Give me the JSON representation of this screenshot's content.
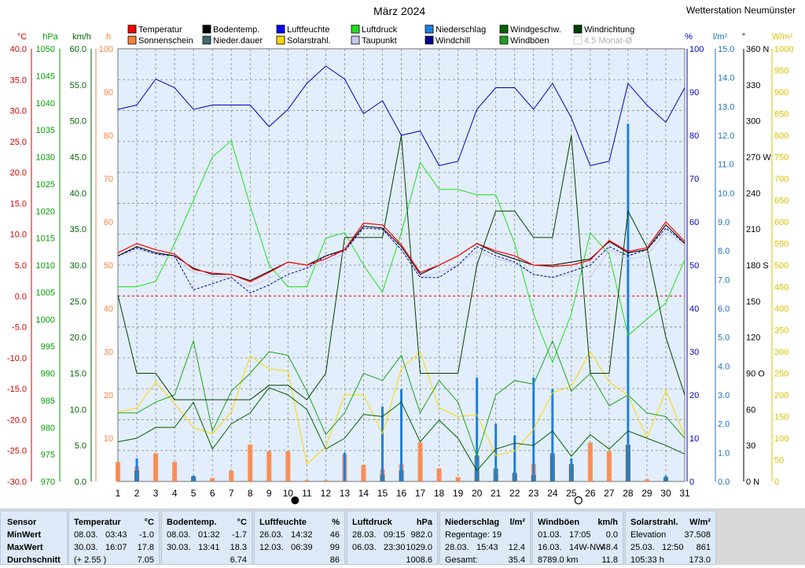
{
  "title": "März 2024",
  "station": "Wetterstation Neumünster",
  "chart_data": {
    "type": "line",
    "x_label_start_day": 1,
    "x_tick_labels": [
      "1",
      "2",
      "3",
      "4",
      "5",
      "6",
      "7",
      "8",
      "9",
      "10",
      "11",
      "12",
      "13",
      "14",
      "15",
      "16",
      "17",
      "18",
      "19",
      "20",
      "21",
      "22",
      "23",
      "24",
      "25",
      "26",
      "27",
      "28",
      "29",
      "30",
      "31"
    ],
    "moon_new_day": 10,
    "moon_full_day": 25,
    "axes": {
      "temp_c": {
        "unit": "°C",
        "color": "#d40000",
        "range": [
          -30,
          40
        ],
        "ticks": [
          "40.0",
          "35.0",
          "30.0",
          "25.0",
          "20.0",
          "15.0",
          "10.0",
          "5.0",
          "0.0",
          "-5.0",
          "-10.0",
          "-15.0",
          "-20.0",
          "-25.0",
          "-30.0"
        ]
      },
      "pressure_hpa": {
        "unit": "hPa",
        "color": "#00a000",
        "range": [
          970,
          1050
        ],
        "ticks": [
          "1050",
          "1045",
          "1040",
          "1035",
          "1030",
          "1025",
          "1020",
          "1015",
          "1010",
          "1005",
          "1000",
          "995",
          "990",
          "985",
          "980",
          "975",
          "970"
        ]
      },
      "wind_kmh": {
        "unit": "km/h",
        "color": "#006000",
        "range": [
          0,
          60
        ],
        "ticks": [
          "60.0",
          "55.0",
          "50.0",
          "45.0",
          "40.0",
          "35.0",
          "30.0",
          "25.0",
          "20.0",
          "15.0",
          "10.0",
          "5.0",
          "0.0"
        ]
      },
      "sun_h": {
        "unit": "h",
        "color": "#ff7f3a",
        "range": [
          0,
          100
        ],
        "ticks": [
          "100",
          "90",
          "80",
          "70",
          "60",
          "50",
          "40",
          "30",
          "20",
          "10"
        ]
      },
      "humidity_pct": {
        "unit": "%",
        "color": "#0000c0",
        "range": [
          0,
          100
        ],
        "ticks": [
          "100",
          "90",
          "80",
          "70",
          "60",
          "50",
          "40",
          "30",
          "20",
          "10",
          "0"
        ]
      },
      "rain_lm2": {
        "unit": "l/m²",
        "color": "#1f6fbf",
        "range": [
          0,
          15
        ],
        "ticks": [
          "15.0",
          "14.0",
          "13.0",
          "12.0",
          "11.0",
          "10.0",
          "9.0",
          "8.0",
          "7.0",
          "6.0",
          "5.0",
          "4.0",
          "3.0",
          "2.0",
          "1.0",
          "0.0"
        ]
      },
      "wind_dir_deg": {
        "unit": "°",
        "color": "#000000",
        "range": [
          0,
          360
        ],
        "ticks": [
          "360 N",
          "330",
          "300",
          "270 W",
          "240",
          "210",
          "180 S",
          "150",
          "120",
          "90  O",
          "60",
          "30",
          "0  N"
        ]
      },
      "solar_wm2": {
        "unit": "W/m²",
        "color": "#d8c000",
        "range": [
          0,
          1000
        ],
        "ticks": [
          "1000",
          "950",
          "900",
          "850",
          "800",
          "750",
          "700",
          "650",
          "600",
          "550",
          "500",
          "450",
          "400",
          "350",
          "300",
          "250",
          "200",
          "150",
          "100",
          "50",
          "0"
        ]
      }
    },
    "legend": [
      {
        "label": "Temperatur",
        "color": "#ff0000"
      },
      {
        "label": "Sonnenschein",
        "color": "#ff7f3a"
      },
      {
        "label": "Bodentemp.",
        "color": "#000000"
      },
      {
        "label": "Nieder.dauer",
        "color": "#3c6e6e"
      },
      {
        "label": "Luftfeuchte",
        "color": "#0000ff"
      },
      {
        "label": "Solarstrahl.",
        "color": "#ffd800"
      },
      {
        "label": "Luftdruck",
        "color": "#22dd22"
      },
      {
        "label": "Taupunkt",
        "color": "#c8c8f0"
      },
      {
        "label": "Niederschlag",
        "color": "#1e7fe0"
      },
      {
        "label": "Windchill",
        "color": "#000090"
      },
      {
        "label": "Windgeschw.",
        "color": "#006400"
      },
      {
        "label": "Windböen",
        "color": "#20a020"
      },
      {
        "label": "Windrichtung",
        "color": "#004000"
      },
      {
        "label": "4.5 Monat-Ø",
        "color": "#c8c8c8"
      }
    ],
    "series": {
      "temperature": {
        "color": "#ff0000",
        "axis": "temp_c",
        "values": [
          7.0,
          8.5,
          7.5,
          6.8,
          4.3,
          3.7,
          3.5,
          2.3,
          3.8,
          5.5,
          5.0,
          6.0,
          7.5,
          11.8,
          11.5,
          8.3,
          3.8,
          5.0,
          6.5,
          8.5,
          7.3,
          6.5,
          5.0,
          4.8,
          5.0,
          5.8,
          9.0,
          7.2,
          7.8,
          12.0,
          8.8
        ]
      },
      "bodentemp": {
        "color": "#000000",
        "axis": "temp_c",
        "values": [
          6.5,
          8.0,
          7.0,
          6.5,
          4.5,
          3.5,
          3.5,
          2.5,
          4.0,
          5.5,
          5.0,
          6.5,
          7.5,
          11.3,
          11.0,
          8.0,
          3.5,
          5.0,
          6.5,
          8.5,
          7.0,
          6.0,
          5.0,
          5.0,
          5.5,
          6.0,
          8.8,
          7.0,
          7.5,
          11.5,
          8.5
        ]
      },
      "taupunkt": {
        "color": "#c8c8f0",
        "axis": "temp_c",
        "values": [
          6.3,
          7.5,
          6.8,
          6.0,
          3.8,
          3.2,
          3.0,
          1.5,
          2.8,
          4.5,
          4.5,
          5.5,
          7.0,
          11.0,
          10.8,
          7.5,
          3.0,
          3.8,
          5.0,
          7.3,
          6.0,
          5.3,
          3.5,
          3.0,
          3.5,
          3.0,
          7.5,
          6.0,
          6.5,
          10.5,
          8.0
        ]
      },
      "windchill": {
        "color": "#000090",
        "axis": "temp_c",
        "values": [
          6.5,
          7.8,
          6.8,
          6.5,
          1.0,
          2.0,
          3.0,
          0.5,
          1.8,
          3.5,
          4.5,
          6.5,
          7.3,
          11.0,
          10.8,
          7.5,
          3.0,
          3.0,
          5.0,
          8.0,
          6.5,
          5.5,
          3.5,
          3.0,
          4.0,
          5.0,
          8.0,
          6.5,
          7.5,
          11.0,
          8.5
        ]
      },
      "humidity": {
        "color": "#0000c0",
        "axis": "humidity_pct",
        "values": [
          86,
          87,
          93,
          91,
          86,
          87,
          87,
          87,
          82,
          86,
          92,
          96,
          93,
          85,
          88,
          80,
          81,
          73,
          74,
          86,
          91,
          91,
          86,
          92,
          84,
          73,
          74,
          92,
          87,
          83,
          91
        ]
      },
      "pressure": {
        "color": "#22dd22",
        "axis": "pressure_hpa",
        "values": [
          1006,
          1006,
          1007,
          1014,
          1022,
          1030,
          1033,
          1021,
          1010,
          1006,
          1006,
          1015,
          1016,
          1010,
          1005,
          1016,
          1029,
          1024,
          1024,
          1023,
          1023,
          1014,
          1001,
          992,
          1001,
          1016,
          1012,
          997,
          1000,
          1003,
          1011
        ]
      },
      "wind_speed": {
        "color": "#006000",
        "axis": "wind_kmh",
        "values": [
          5.5,
          6.0,
          7.5,
          7.5,
          11.0,
          4.5,
          8.0,
          9.5,
          13.0,
          12.0,
          10.0,
          4.5,
          6.0,
          9.3,
          9.0,
          11.0,
          5.5,
          8.5,
          6.0,
          1.5,
          4.5,
          5.3,
          5.0,
          7.0,
          3.5,
          6.5,
          4.5,
          7.0,
          6.0,
          5.0,
          3.8
        ]
      },
      "wind_gusts": {
        "color": "#20a020",
        "axis": "wind_kmh",
        "values": [
          9.5,
          9.5,
          11.0,
          12.0,
          19.5,
          7.0,
          12.5,
          15.0,
          18.0,
          17.5,
          12.5,
          6.5,
          9.5,
          15.0,
          14.0,
          17.5,
          9.5,
          14.0,
          11.0,
          3.5,
          12.0,
          14.0,
          13.5,
          19.5,
          12.5,
          15.0,
          10.5,
          12.0,
          9.5,
          9.0,
          6.0
        ]
      },
      "wind_dir": {
        "color": "#004000",
        "axis": "wind_dir_deg",
        "values": [
          155,
          90,
          90,
          68,
          68,
          68,
          68,
          68,
          80,
          80,
          68,
          90,
          203,
          203,
          203,
          288,
          90,
          90,
          90,
          180,
          225,
          225,
          203,
          203,
          288,
          90,
          90,
          225,
          195,
          120,
          72
        ]
      },
      "solar": {
        "color": "#ffd800",
        "axis": "solar_wm2",
        "values": [
          160,
          170,
          230,
          180,
          125,
          110,
          160,
          290,
          260,
          255,
          40,
          80,
          200,
          200,
          110,
          260,
          300,
          170,
          150,
          155,
          60,
          70,
          120,
          205,
          220,
          300,
          230,
          200,
          100,
          210,
          105
        ]
      },
      "sunshine_bars": {
        "color": "#ff7f3a",
        "axis": "sun_h",
        "values": [
          4.5,
          3.5,
          6.5,
          4.5,
          1.0,
          0.8,
          2.5,
          8.5,
          7.0,
          7.0,
          0.3,
          0.3,
          6.3,
          3.8,
          2.8,
          4.0,
          9.0,
          3.0,
          1.0,
          2.3,
          1.8,
          1.5,
          4.0,
          5.8,
          4.0,
          9.0,
          7.0,
          8.3,
          0.5,
          1.0,
          0.0
        ]
      },
      "rain_duration_bars": {
        "color": "#3c6e6e",
        "axis": "sun_h",
        "values": [
          0,
          2.5,
          0,
          0,
          1.2,
          0,
          0,
          0,
          0,
          0,
          0,
          0,
          0,
          0,
          1.5,
          2.5,
          0,
          0,
          0,
          6.0,
          3.0,
          2.0,
          1.5,
          6.5,
          4.0,
          0,
          0,
          8.5,
          0,
          1.0,
          0
        ]
      },
      "rain_bars": {
        "color": "#1e7fe0",
        "axis": "rain_lm2",
        "values": [
          0,
          0.8,
          0,
          0,
          0.2,
          0,
          0,
          0,
          0,
          0,
          0,
          0,
          1.0,
          0,
          2.6,
          3.2,
          0,
          0,
          0,
          3.6,
          2.0,
          1.6,
          3.6,
          3.2,
          0.8,
          0,
          0,
          12.4,
          0,
          0.2,
          0
        ]
      }
    }
  },
  "stats": {
    "labels": {
      "sensor": "Sensor",
      "min": "MinWert",
      "max": "MaxWert",
      "avg": "Durchschnitt"
    },
    "blocks": [
      {
        "name": "Temperatur",
        "unit": "°C",
        "min_date": "08.03.",
        "min_time": "03:43",
        "min_val": "-1.0",
        "max_date": "30.03.",
        "max_time": "16:07",
        "max_val": "17.8",
        "avg_note": "(+ 2.55 )",
        "avg_val": "7.05"
      },
      {
        "name": "Bodentemp.",
        "unit": "°C",
        "min_date": "08.03.",
        "min_time": "01:32",
        "min_val": "-1.7",
        "max_date": "30.03.",
        "max_time": "13:41",
        "max_val": "18.3",
        "avg_note": "",
        "avg_val": "6.74"
      },
      {
        "name": "Luftfeuchte",
        "unit": "%",
        "min_date": "26.03.",
        "min_time": "14:32",
        "min_val": "46",
        "max_date": "12.03.",
        "max_time": "06:39",
        "max_val": "99",
        "avg_note": "",
        "avg_val": "86"
      },
      {
        "name": "Luftdruck",
        "unit": "hPa",
        "min_date": "28.03.",
        "min_time": "09:15",
        "min_val": "982.0",
        "max_date": "06.03.",
        "max_time": "23:30",
        "max_val": "1029.0",
        "avg_note": "",
        "avg_val": "1008.6"
      },
      {
        "name": "Niederschlag",
        "unit": "l/m²",
        "min_date": "Regentage: 19",
        "min_time": "",
        "min_val": "",
        "max_date": "28.03.",
        "max_time": "15:43",
        "max_val": "12.4",
        "avg_note": "Gesamt:",
        "avg_val": "35.4"
      },
      {
        "name": "Windböen",
        "unit": "km/h",
        "min_date": "01.03.",
        "min_time": "17:05",
        "min_val": "0.0",
        "max_date": "16.03.",
        "max_time": "14W-NW",
        "max_val": "48.4",
        "avg_note": "8789.0 km",
        "avg_val": "11.8"
      },
      {
        "name": "Solarstrahl.",
        "unit": "W/m²",
        "min_date": "Elevation",
        "min_time": "",
        "min_val": "37.508",
        "max_date": "25.03.",
        "max_time": "12:50",
        "max_val": "861",
        "avg_note": "105:33 h",
        "avg_val": "173.0"
      }
    ]
  }
}
